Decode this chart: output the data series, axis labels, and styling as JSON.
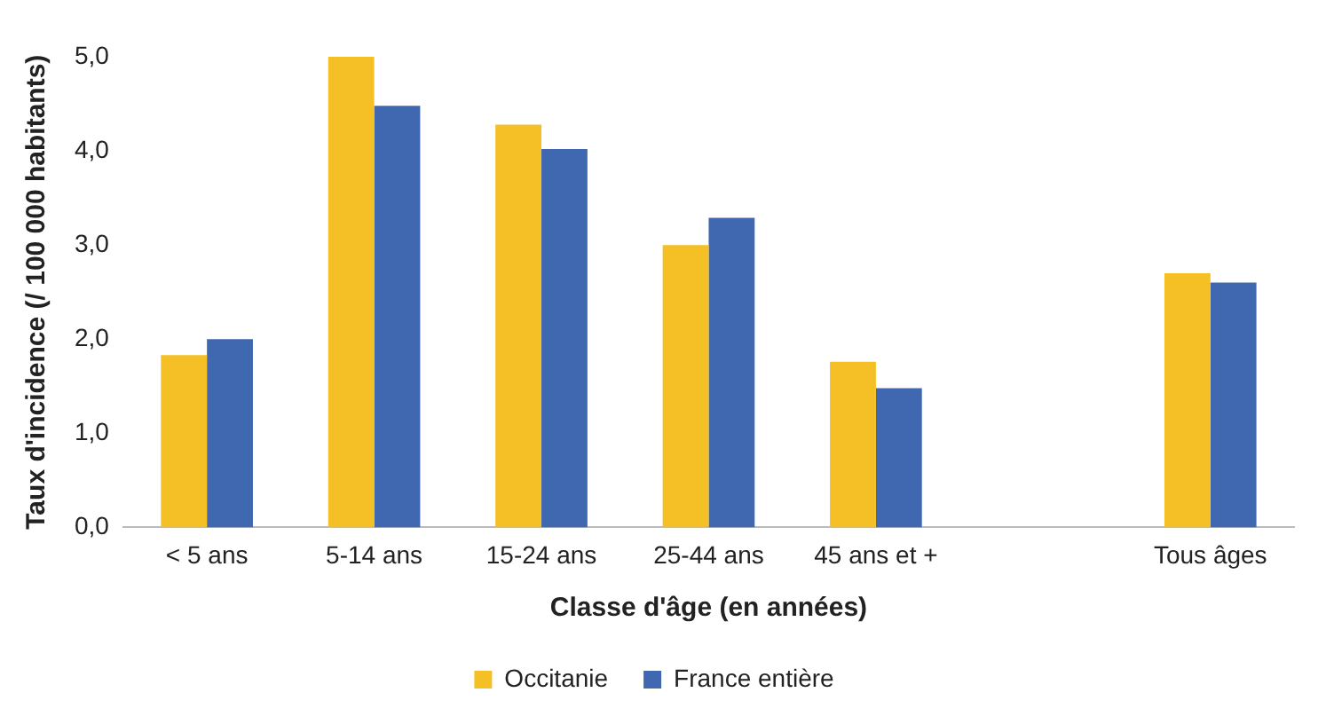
{
  "chart_data": {
    "type": "bar",
    "xlabel": "Classe d'âge (en années)",
    "ylabel": "Taux d'incidence (/ 100 000 habitants)",
    "categories": [
      "< 5 ans",
      "5-14 ans",
      "15-24 ans",
      "25-44 ans",
      "45 ans et +",
      null,
      "Tous âges"
    ],
    "series": [
      {
        "name": "Occitanie",
        "color": "#f4c025",
        "values": [
          1.83,
          5.0,
          4.28,
          3.0,
          1.76,
          null,
          2.7
        ]
      },
      {
        "name": "France entière",
        "color": "#4068b0",
        "values": [
          2.0,
          4.48,
          4.02,
          3.29,
          1.48,
          null,
          2.6
        ]
      }
    ],
    "ylim": [
      0,
      5
    ],
    "yticks": [
      {
        "value": 0,
        "label": "0,0"
      },
      {
        "value": 1,
        "label": "1,0"
      },
      {
        "value": 2,
        "label": "2,0"
      },
      {
        "value": 3,
        "label": "3,0"
      },
      {
        "value": 4,
        "label": "4,0"
      },
      {
        "value": 5,
        "label": "5,0"
      }
    ],
    "grid": false,
    "legend": "bottom"
  }
}
